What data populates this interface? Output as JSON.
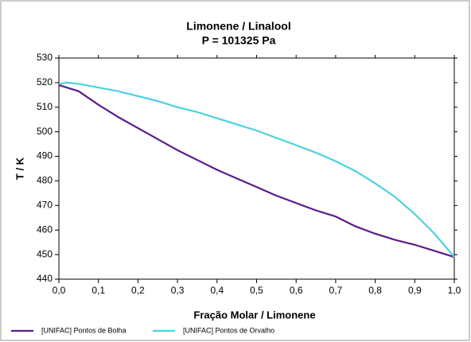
{
  "chart_data": {
    "type": "line",
    "title": "Limonene / Linalool",
    "subtitle": "P = 101325 Pa",
    "x_label": "Fração Molar / Limonene",
    "y_label": "T / K",
    "x": [
      0,
      0.02,
      0.05,
      0.1,
      0.15,
      0.2,
      0.25,
      0.3,
      0.35,
      0.4,
      0.45,
      0.5,
      0.55,
      0.6,
      0.65,
      0.7,
      0.75,
      0.8,
      0.85,
      0.9,
      0.95,
      1.0
    ],
    "series": [
      {
        "name": "[UNIFAC] Pontos de Bolha",
        "color": "#5b1a8c",
        "values": [
          519,
          518,
          516.5,
          511,
          506,
          501.5,
          497,
          492.5,
          488.5,
          484.5,
          481,
          477.5,
          474,
          471,
          468,
          465.5,
          461.5,
          458.5,
          456,
          454,
          451.5,
          449
        ]
      },
      {
        "name": "[UNIFAC] Pontos de Orvalho",
        "color": "#4dd0e1",
        "values": [
          519.5,
          520,
          519.5,
          518,
          516.5,
          514.5,
          512.5,
          510,
          508,
          505.5,
          503,
          500.5,
          497.5,
          494.5,
          491.5,
          488,
          484,
          479,
          473.5,
          466.5,
          458.5,
          449
        ]
      }
    ],
    "xlim": [
      0,
      1.0
    ],
    "xticks": [
      {
        "value": 0,
        "label": "0,0"
      },
      {
        "value": 0.1,
        "label": "0,1"
      },
      {
        "value": 0.2,
        "label": "0,2"
      },
      {
        "value": 0.3,
        "label": "0,3"
      },
      {
        "value": 0.4,
        "label": "0,4"
      },
      {
        "value": 0.5,
        "label": "0,5"
      },
      {
        "value": 0.6,
        "label": "0,6"
      },
      {
        "value": 0.7,
        "label": "0,7"
      },
      {
        "value": 0.8,
        "label": "0,8"
      },
      {
        "value": 0.9,
        "label": "0,9"
      },
      {
        "value": 1.0,
        "label": "1,0"
      }
    ],
    "ylim": [
      440,
      530
    ],
    "yticks": [
      440,
      450,
      460,
      470,
      480,
      490,
      500,
      510,
      520,
      530
    ],
    "grid": false,
    "legend": "bottom"
  }
}
